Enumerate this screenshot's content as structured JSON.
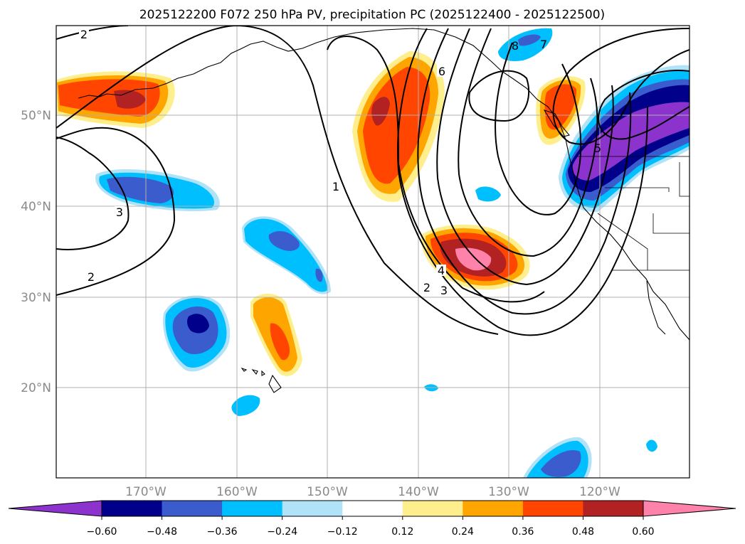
{
  "title": "2025122200 F072 250 hPa PV, precipitation PC (2025122400 - 2025122500)",
  "lat_labels": [
    "50°N",
    "40°N",
    "30°N",
    "20°N"
  ],
  "lon_labels": [
    "170°W",
    "160°W",
    "150°W",
    "140°W",
    "130°W",
    "120°W"
  ],
  "colorbar": {
    "ticks": [
      "−0.60",
      "−0.48",
      "−0.36",
      "−0.24",
      "−0.12",
      "0.12",
      "0.24",
      "0.36",
      "0.48",
      "0.60"
    ],
    "colors": [
      "#8b33cc",
      "#00008b",
      "#3a5ccc",
      "#00bfff",
      "#b0e2f8",
      "#ffffff",
      "#ffee8c",
      "#ffa500",
      "#ff4500",
      "#b22222",
      "#ff82ab",
      "#ff82ab"
    ]
  },
  "contour_labels": [
    "2",
    "3",
    "2",
    "1",
    "2",
    "3",
    "4",
    "6",
    "8",
    "7",
    "5"
  ]
}
